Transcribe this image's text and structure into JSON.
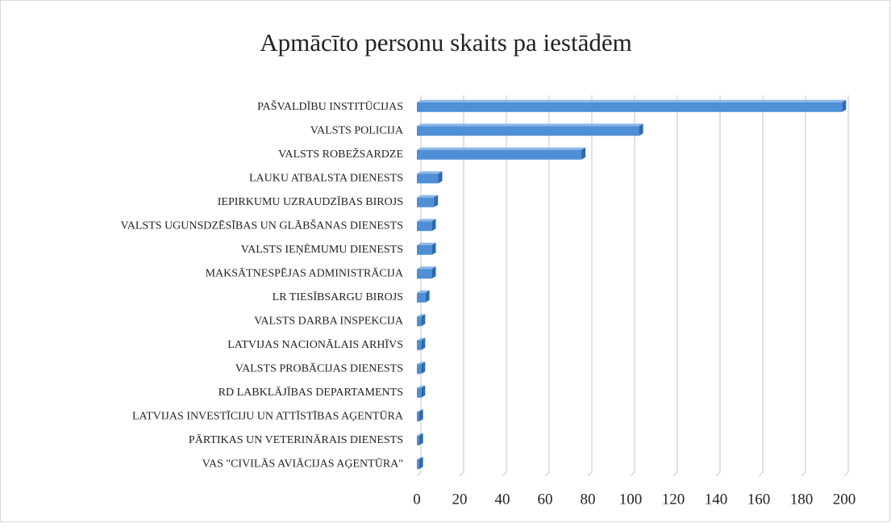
{
  "chart_data": {
    "type": "bar",
    "orientation": "horizontal",
    "title": "Apmācīto personu skaits pa iestādēm",
    "categories": [
      "PAŠVALDĪBU INSTITŪCIJAS",
      "VALSTS POLICIJA",
      "VALSTS ROBEŽSARDZE",
      "LAUKU ATBALSTA DIENESTS",
      "IEPIRKUMU UZRAUDZĪBAS BIROJS",
      "VALSTS UGUNSDZĒSĪBAS UN GLĀBŠANAS DIENESTS",
      "VALSTS IEŅĒMUMU DIENESTS",
      "MAKSĀTNESPĒJAS ADMINISTRĀCIJA",
      "LR TIESĪBSARGU BIROJS",
      "VALSTS DARBA INSPEKCIJA",
      "LATVIJAS NACIONĀLAIS ARHĪVS",
      "VALSTS PROBĀCIJAS DIENESTS",
      "RD LABKLĀJĪBAS DEPARTAMENTS",
      "LATVIJAS INVESTĪCIJU UN ATTĪSTĪBAS AĢENTŪRA",
      "PĀRTIKAS UN VETERINĀRAIS DIENESTS",
      "VAS \"CIVILĀS AVIĀCIJAS AĢENTŪRA\""
    ],
    "values": [
      199,
      104,
      77,
      10,
      8,
      7,
      7,
      7,
      4,
      2,
      2,
      2,
      2,
      1,
      1,
      1
    ],
    "color": "#4f8fd6",
    "xlim": [
      0,
      200
    ],
    "xticks": [
      0,
      20,
      40,
      60,
      80,
      100,
      120,
      140,
      160,
      180,
      200
    ],
    "grid": true
  }
}
